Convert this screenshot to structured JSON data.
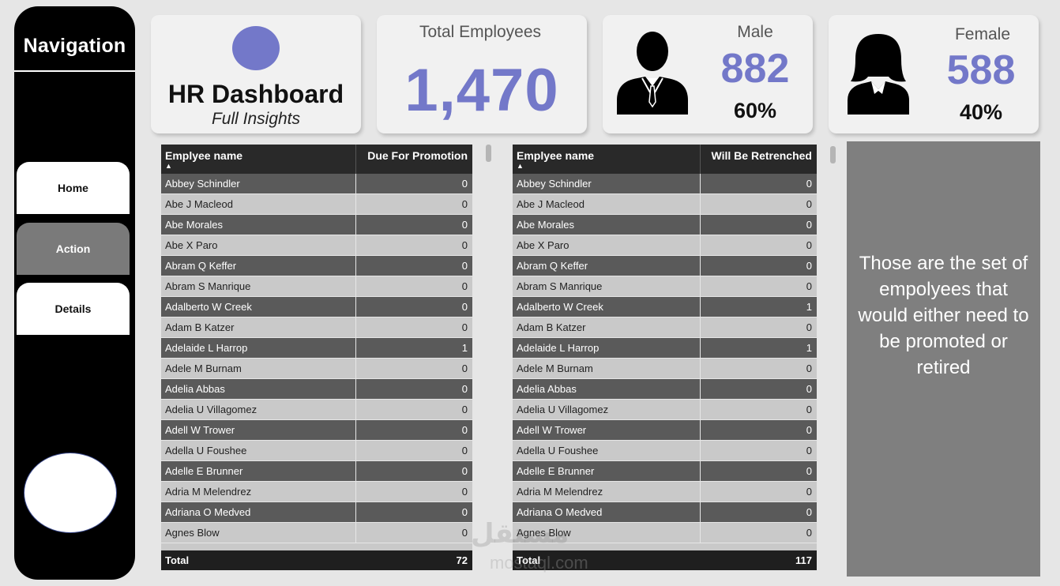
{
  "nav": {
    "title": "Navigation",
    "buttons": {
      "home": "Home",
      "action": "Action",
      "details": "Details"
    }
  },
  "cards": {
    "title": {
      "heading": "HR Dashboard",
      "subtitle": "Full Insights"
    },
    "total": {
      "label": "Total Employees",
      "value": "1,470"
    },
    "male": {
      "label": "Male",
      "value": "882",
      "pct": "60%",
      "icon": "male-person-icon"
    },
    "female": {
      "label": "Female",
      "value": "588",
      "pct": "40%",
      "icon": "female-person-icon"
    }
  },
  "colors": {
    "accent": "#7378c9",
    "dark_row": "#5a5a5a",
    "light_row": "#c9c9c9",
    "panel": "#7f7f7f"
  },
  "promotion_table": {
    "col_name": "Emplyee name",
    "col_value": "Due For Promotion",
    "rows": [
      {
        "name": "Abbey Schindler",
        "value": "0"
      },
      {
        "name": "Abe J Macleod",
        "value": "0"
      },
      {
        "name": "Abe Morales",
        "value": "0"
      },
      {
        "name": "Abe X Paro",
        "value": "0"
      },
      {
        "name": "Abram Q Keffer",
        "value": "0"
      },
      {
        "name": "Abram S Manrique",
        "value": "0"
      },
      {
        "name": "Adalberto W Creek",
        "value": "0"
      },
      {
        "name": "Adam B Katzer",
        "value": "0"
      },
      {
        "name": "Adelaide L Harrop",
        "value": "1"
      },
      {
        "name": "Adele M Burnam",
        "value": "0"
      },
      {
        "name": "Adelia Abbas",
        "value": "0"
      },
      {
        "name": "Adelia U Villagomez",
        "value": "0"
      },
      {
        "name": "Adell W Trower",
        "value": "0"
      },
      {
        "name": "Adella U Foushee",
        "value": "0"
      },
      {
        "name": "Adelle E Brunner",
        "value": "0"
      },
      {
        "name": "Adria M Melendrez",
        "value": "0"
      },
      {
        "name": "Adriana O Medved",
        "value": "0"
      },
      {
        "name": "Agnes Blow",
        "value": "0"
      }
    ],
    "total_label": "Total",
    "total_value": "72"
  },
  "retrench_table": {
    "col_name": "Emplyee name",
    "col_value": "Will Be Retrenched",
    "rows": [
      {
        "name": "Abbey Schindler",
        "value": "0"
      },
      {
        "name": "Abe J Macleod",
        "value": "0"
      },
      {
        "name": "Abe Morales",
        "value": "0"
      },
      {
        "name": "Abe X Paro",
        "value": "0"
      },
      {
        "name": "Abram Q Keffer",
        "value": "0"
      },
      {
        "name": "Abram S Manrique",
        "value": "0"
      },
      {
        "name": "Adalberto W Creek",
        "value": "1"
      },
      {
        "name": "Adam B Katzer",
        "value": "0"
      },
      {
        "name": "Adelaide L Harrop",
        "value": "1"
      },
      {
        "name": "Adele M Burnam",
        "value": "0"
      },
      {
        "name": "Adelia Abbas",
        "value": "0"
      },
      {
        "name": "Adelia U Villagomez",
        "value": "0"
      },
      {
        "name": "Adell W Trower",
        "value": "0"
      },
      {
        "name": "Adella U Foushee",
        "value": "0"
      },
      {
        "name": "Adelle E Brunner",
        "value": "0"
      },
      {
        "name": "Adria M Melendrez",
        "value": "0"
      },
      {
        "name": "Adriana O Medved",
        "value": "0"
      },
      {
        "name": "Agnes Blow",
        "value": "0"
      }
    ],
    "total_label": "Total",
    "total_value": "117"
  },
  "info_panel": {
    "text": "Those are the set of empolyees that would either need to be promoted or retired"
  },
  "watermark": {
    "text": "مستقل",
    "sub": "mostaql.com"
  }
}
